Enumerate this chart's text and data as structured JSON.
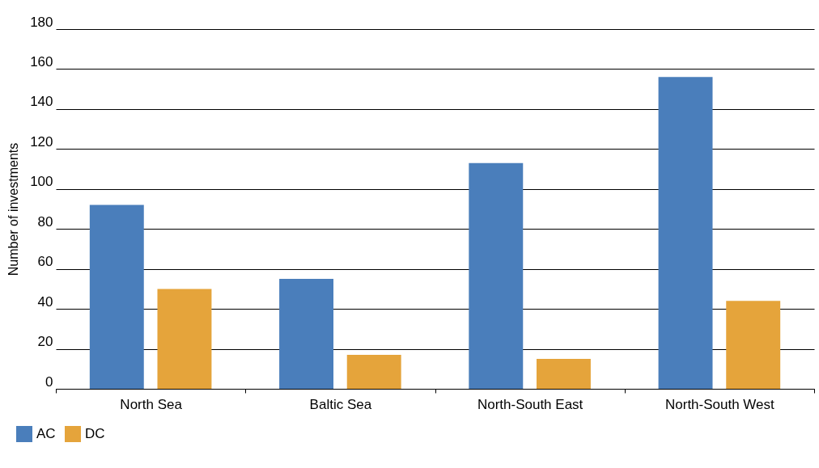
{
  "chart_data": {
    "type": "bar",
    "ylabel": "Number of investments",
    "categories": [
      "North Sea",
      "Baltic Sea",
      "North-South East",
      "North-South West"
    ],
    "series": [
      {
        "name": "AC",
        "color": "#4a7ebb",
        "values": [
          92,
          55,
          113,
          156
        ]
      },
      {
        "name": "DC",
        "color": "#e5a43b",
        "values": [
          50,
          17,
          15,
          44
        ]
      }
    ],
    "ylim": [
      0,
      180
    ],
    "yticks": [
      0,
      20,
      40,
      60,
      80,
      100,
      120,
      140,
      160,
      180
    ],
    "grid": "y",
    "legend": "bottom left"
  }
}
